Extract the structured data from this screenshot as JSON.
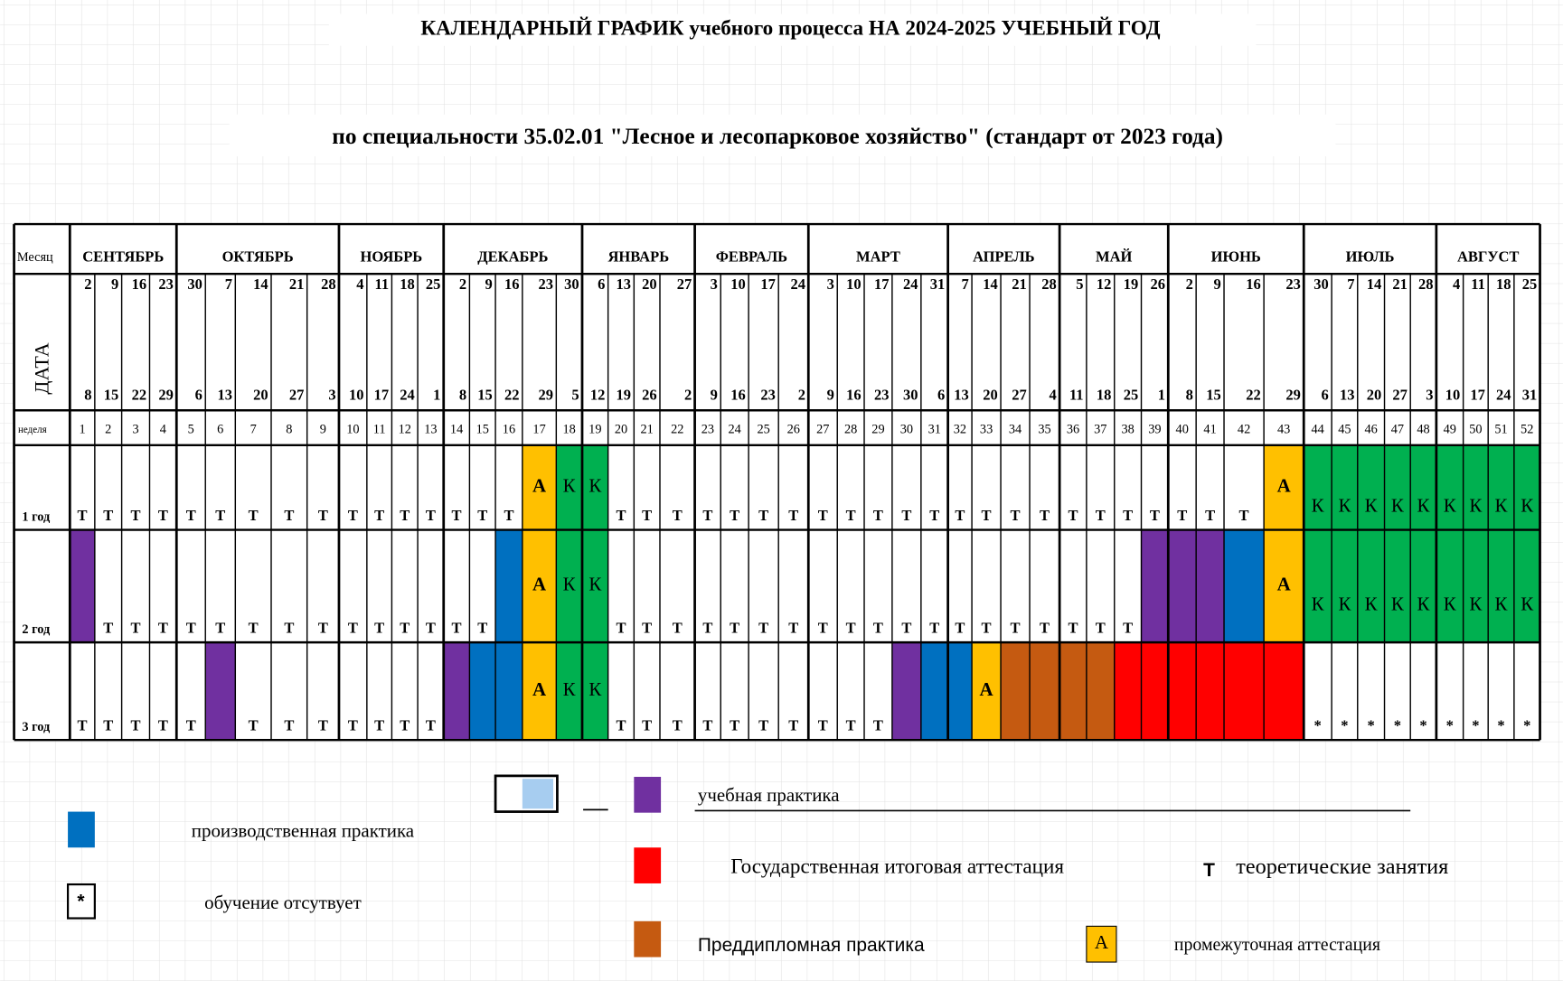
{
  "title": "КАЛЕНДАРНЫЙ  ГРАФИК  учебного процесса НА 2024-2025 УЧЕБНЫЙ ГОД",
  "subtitle": "по специальности  35.02.01 \"Лесное и лесопарковое хозяйство\" (стандарт от 2023 года)",
  "labels": {
    "month": "Месяц",
    "date": "ДАТА",
    "week": "неделя"
  },
  "months": [
    "СЕНТЯБРЬ",
    "ОКТЯБРЬ",
    "НОЯБРЬ",
    "ДЕКАБРЬ",
    "ЯНВАРЬ",
    "ФЕВРАЛЬ",
    "МАРТ",
    "АПРЕЛЬ",
    "МАЙ",
    "ИЮНЬ",
    "ИЮЛЬ",
    "АВГУСТ"
  ],
  "date_start": [
    2,
    9,
    16,
    23,
    30,
    7,
    14,
    21,
    28,
    4,
    11,
    18,
    25,
    2,
    9,
    16,
    23,
    30,
    6,
    13,
    20,
    27,
    3,
    10,
    17,
    24,
    3,
    10,
    17,
    24,
    31,
    7,
    14,
    21,
    28,
    5,
    12,
    19,
    26,
    2,
    9,
    16,
    23,
    30,
    7,
    14,
    21,
    28,
    4,
    11,
    18,
    25
  ],
  "date_end": [
    8,
    15,
    22,
    29,
    6,
    13,
    20,
    27,
    3,
    10,
    17,
    24,
    1,
    8,
    15,
    22,
    29,
    5,
    12,
    19,
    26,
    2,
    9,
    16,
    23,
    2,
    9,
    16,
    23,
    30,
    6,
    13,
    20,
    27,
    4,
    11,
    18,
    25,
    1,
    8,
    15,
    22,
    29,
    6,
    13,
    20,
    27,
    3,
    10,
    17,
    24,
    31
  ],
  "weeks": [
    1,
    2,
    3,
    4,
    5,
    6,
    7,
    8,
    9,
    10,
    11,
    12,
    13,
    14,
    15,
    16,
    17,
    18,
    19,
    20,
    21,
    22,
    23,
    24,
    25,
    26,
    27,
    28,
    29,
    30,
    31,
    32,
    33,
    34,
    35,
    36,
    37,
    38,
    39,
    40,
    41,
    42,
    43,
    44,
    45,
    46,
    47,
    48,
    49,
    50,
    51,
    52
  ],
  "years": [
    {
      "label": "1 год",
      "codes": [
        "Т",
        "Т",
        "Т",
        "Т",
        "Т",
        "Т",
        "Т",
        "Т",
        "Т",
        "Т",
        "Т",
        "Т",
        "Т",
        "Т",
        "Т",
        "Т",
        "А",
        "К",
        "К",
        "Т",
        "Т",
        "Т",
        "Т",
        "Т",
        "Т",
        "Т",
        "Т",
        "Т",
        "Т",
        "Т",
        "Т",
        "Т",
        "Т",
        "Т",
        "Т",
        "Т",
        "Т",
        "Т",
        "Т",
        "Т",
        "Т",
        "Т",
        "А",
        "К",
        "К",
        "К",
        "К",
        "К",
        "К",
        "К",
        "К",
        "К"
      ],
      "fills": [
        null,
        null,
        null,
        null,
        null,
        null,
        null,
        null,
        null,
        null,
        null,
        null,
        null,
        null,
        null,
        null,
        "#FFC000",
        "#00B050",
        "#00B050",
        null,
        null,
        null,
        null,
        null,
        null,
        null,
        null,
        null,
        null,
        null,
        null,
        null,
        null,
        null,
        null,
        null,
        null,
        null,
        null,
        null,
        null,
        null,
        "#FFC000",
        "#00B050",
        "#00B050",
        "#00B050",
        "#00B050",
        "#00B050",
        "#00B050",
        "#00B050",
        "#00B050",
        "#00B050"
      ]
    },
    {
      "label": "2 год",
      "codes": [
        null,
        "Т",
        "Т",
        "Т",
        "Т",
        "Т",
        "Т",
        "Т",
        "Т",
        "Т",
        "Т",
        "Т",
        "Т",
        "Т",
        "Т",
        null,
        "А",
        "К",
        "К",
        "Т",
        "Т",
        "Т",
        "Т",
        "Т",
        "Т",
        "Т",
        "Т",
        "Т",
        "Т",
        "Т",
        "Т",
        "Т",
        "Т",
        "Т",
        "Т",
        "Т",
        "Т",
        "Т",
        null,
        null,
        null,
        null,
        "А",
        "К",
        "К",
        "К",
        "К",
        "К",
        "К",
        "К",
        "К",
        "К"
      ],
      "fills": [
        "#7030A0",
        null,
        null,
        null,
        null,
        null,
        null,
        null,
        null,
        null,
        null,
        null,
        null,
        null,
        null,
        "#0070C0",
        "#FFC000",
        "#00B050",
        "#00B050",
        null,
        null,
        null,
        null,
        null,
        null,
        null,
        null,
        null,
        null,
        null,
        null,
        null,
        null,
        null,
        null,
        null,
        null,
        null,
        "#7030A0",
        "#7030A0",
        "#7030A0",
        "#0070C0",
        "#FFC000",
        "#00B050",
        "#00B050",
        "#00B050",
        "#00B050",
        "#00B050",
        "#00B050",
        "#00B050",
        "#00B050",
        "#00B050"
      ]
    },
    {
      "label": "3 год",
      "codes": [
        "Т",
        "Т",
        "Т",
        "Т",
        "Т",
        null,
        "Т",
        "Т",
        "Т",
        "Т",
        "Т",
        "Т",
        "Т",
        null,
        null,
        null,
        "А",
        "К",
        "К",
        "Т",
        "Т",
        "Т",
        "Т",
        "Т",
        "Т",
        "Т",
        "Т",
        "Т",
        "Т",
        null,
        null,
        null,
        "А",
        null,
        null,
        null,
        null,
        null,
        null,
        null,
        null,
        null,
        null,
        "*",
        "*",
        "*",
        "*",
        "*",
        "*",
        "*",
        "*",
        "*"
      ],
      "fills": [
        null,
        null,
        null,
        null,
        null,
        "#7030A0",
        null,
        null,
        null,
        null,
        null,
        null,
        null,
        "#7030A0",
        "#0070C0",
        "#0070C0",
        "#FFC000",
        "#00B050",
        "#00B050",
        null,
        null,
        null,
        null,
        null,
        null,
        null,
        null,
        null,
        null,
        "#7030A0",
        "#0070C0",
        "#0070C0",
        "#FFC000",
        "#C55A11",
        "#C55A11",
        "#C55A11",
        "#C55A11",
        "#FF0000",
        "#FF0000",
        "#FF0000",
        "#FF0000",
        "#FF0000",
        "#FF0000",
        null,
        null,
        null,
        null,
        null,
        null,
        null,
        null,
        null
      ]
    }
  ],
  "legend": [
    {
      "color": "#0070C0",
      "label": "производственная практика"
    },
    {
      "symbol": "*",
      "label": "обучение отсутвует"
    },
    {
      "color": "#7030A0",
      "label": "учебная практика"
    },
    {
      "color": "#FF0000",
      "label": "Государственная итоговая аттестация"
    },
    {
      "symbol": "Т",
      "label": "теоретические занятия"
    },
    {
      "color": "#C55A11",
      "label": "Преддипломная практика"
    },
    {
      "color": "#FFC000",
      "symbol": "А",
      "label": "промежуточная аттестация"
    }
  ]
}
